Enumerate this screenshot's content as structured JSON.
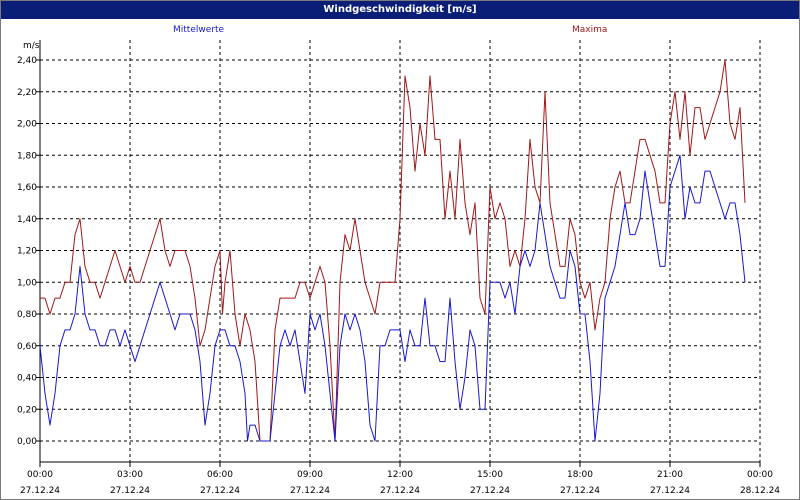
{
  "window": {
    "title": "Windgeschwindigkeit [m/s]"
  },
  "colors": {
    "title_bar": "#0a1e78",
    "mittelwerte": "#1818d0",
    "maxima": "#a01818"
  },
  "chart_data": {
    "type": "line",
    "title": "Windgeschwindigkeit [m/s]",
    "ylabel": "m/s",
    "ylim": [
      0.0,
      2.4
    ],
    "y_ticks": [
      "0,00",
      "0,20",
      "0,40",
      "0,60",
      "0,80",
      "1,00",
      "1,20",
      "1,40",
      "1,60",
      "1,80",
      "2,00",
      "2,20",
      "2,40"
    ],
    "x_ticks": [
      {
        "time": "00:00",
        "date": "27.12.24"
      },
      {
        "time": "03:00",
        "date": "27.12.24"
      },
      {
        "time": "06:00",
        "date": "27.12.24"
      },
      {
        "time": "09:00",
        "date": "27.12.24"
      },
      {
        "time": "12:00",
        "date": "27.12.24"
      },
      {
        "time": "15:00",
        "date": "27.12.24"
      },
      {
        "time": "18:00",
        "date": "27.12.24"
      },
      {
        "time": "21:00",
        "date": "27.12.24"
      },
      {
        "time": "00:00",
        "date": "28.12.24"
      }
    ],
    "xlim_hours": [
      0,
      24
    ],
    "grid": true,
    "series": [
      {
        "name": "Mittelwerte",
        "color": "#1818d0",
        "points": [
          [
            0.0,
            0.6
          ],
          [
            0.1667,
            0.3
          ],
          [
            0.333,
            0.1
          ],
          [
            0.5,
            0.3
          ],
          [
            0.667,
            0.6
          ],
          [
            0.833,
            0.7
          ],
          [
            1.0,
            0.7
          ],
          [
            1.167,
            0.8
          ],
          [
            1.333,
            1.1
          ],
          [
            1.5,
            0.8
          ],
          [
            1.667,
            0.7
          ],
          [
            1.833,
            0.7
          ],
          [
            2.0,
            0.6
          ],
          [
            2.167,
            0.6
          ],
          [
            2.333,
            0.7
          ],
          [
            2.5,
            0.7
          ],
          [
            2.667,
            0.6
          ],
          [
            2.833,
            0.7
          ],
          [
            3.0,
            0.6
          ],
          [
            3.167,
            0.5
          ],
          [
            3.333,
            0.6
          ],
          [
            3.5,
            0.7
          ],
          [
            3.667,
            0.8
          ],
          [
            3.833,
            0.9
          ],
          [
            4.0,
            1.0
          ],
          [
            4.167,
            0.9
          ],
          [
            4.333,
            0.8
          ],
          [
            4.5,
            0.7
          ],
          [
            4.667,
            0.8
          ],
          [
            4.833,
            0.8
          ],
          [
            5.0,
            0.8
          ],
          [
            5.167,
            0.7
          ],
          [
            5.333,
            0.5
          ],
          [
            5.5,
            0.1
          ],
          [
            5.667,
            0.3
          ],
          [
            5.833,
            0.6
          ],
          [
            6.0,
            0.7
          ],
          [
            6.167,
            0.7
          ],
          [
            6.333,
            0.6
          ],
          [
            6.5,
            0.6
          ],
          [
            6.667,
            0.5
          ],
          [
            6.833,
            0.3
          ],
          [
            6.917,
            0.0
          ],
          [
            7.0,
            0.1
          ],
          [
            7.167,
            0.1
          ],
          [
            7.333,
            0.0
          ],
          [
            7.5,
            0.0
          ],
          [
            7.667,
            0.0
          ],
          [
            7.833,
            0.3
          ],
          [
            8.0,
            0.6
          ],
          [
            8.167,
            0.7
          ],
          [
            8.333,
            0.6
          ],
          [
            8.5,
            0.7
          ],
          [
            8.667,
            0.5
          ],
          [
            8.833,
            0.3
          ],
          [
            9.0,
            0.8
          ],
          [
            9.167,
            0.7
          ],
          [
            9.333,
            0.8
          ],
          [
            9.5,
            0.6
          ],
          [
            9.667,
            0.3
          ],
          [
            9.833,
            0.0
          ],
          [
            10.0,
            0.6
          ],
          [
            10.167,
            0.8
          ],
          [
            10.333,
            0.7
          ],
          [
            10.5,
            0.8
          ],
          [
            10.667,
            0.7
          ],
          [
            10.833,
            0.5
          ],
          [
            11.0,
            0.1
          ],
          [
            11.167,
            0.0
          ],
          [
            11.333,
            0.6
          ],
          [
            11.5,
            0.6
          ],
          [
            11.667,
            0.7
          ],
          [
            11.833,
            0.7
          ],
          [
            12.0,
            0.7
          ],
          [
            12.167,
            0.5
          ],
          [
            12.333,
            0.7
          ],
          [
            12.5,
            0.6
          ],
          [
            12.667,
            0.6
          ],
          [
            12.833,
            0.9
          ],
          [
            13.0,
            0.6
          ],
          [
            13.167,
            0.6
          ],
          [
            13.333,
            0.5
          ],
          [
            13.5,
            0.5
          ],
          [
            13.667,
            0.9
          ],
          [
            13.833,
            0.5
          ],
          [
            14.0,
            0.2
          ],
          [
            14.167,
            0.4
          ],
          [
            14.333,
            0.7
          ],
          [
            14.5,
            0.6
          ],
          [
            14.667,
            0.2
          ],
          [
            14.833,
            0.2
          ],
          [
            15.0,
            1.0
          ],
          [
            15.167,
            1.0
          ],
          [
            15.333,
            1.0
          ],
          [
            15.5,
            0.9
          ],
          [
            15.667,
            1.0
          ],
          [
            15.833,
            0.8
          ],
          [
            16.0,
            1.1
          ],
          [
            16.167,
            1.2
          ],
          [
            16.333,
            1.1
          ],
          [
            16.5,
            1.2
          ],
          [
            16.667,
            1.5
          ],
          [
            16.833,
            1.3
          ],
          [
            17.0,
            1.1
          ],
          [
            17.167,
            1.0
          ],
          [
            17.333,
            0.9
          ],
          [
            17.5,
            0.9
          ],
          [
            17.667,
            1.2
          ],
          [
            17.833,
            1.1
          ],
          [
            18.0,
            0.8
          ],
          [
            18.167,
            0.8
          ],
          [
            18.333,
            0.5
          ],
          [
            18.5,
            0.0
          ],
          [
            18.667,
            0.3
          ],
          [
            18.833,
            0.9
          ],
          [
            19.0,
            1.0
          ],
          [
            19.167,
            1.1
          ],
          [
            19.333,
            1.3
          ],
          [
            19.5,
            1.5
          ],
          [
            19.667,
            1.3
          ],
          [
            19.833,
            1.3
          ],
          [
            20.0,
            1.4
          ],
          [
            20.167,
            1.7
          ],
          [
            20.333,
            1.5
          ],
          [
            20.5,
            1.3
          ],
          [
            20.667,
            1.1
          ],
          [
            20.833,
            1.1
          ],
          [
            21.0,
            1.6
          ],
          [
            21.167,
            1.7
          ],
          [
            21.333,
            1.8
          ],
          [
            21.5,
            1.4
          ],
          [
            21.667,
            1.6
          ],
          [
            21.833,
            1.5
          ],
          [
            22.0,
            1.5
          ],
          [
            22.167,
            1.7
          ],
          [
            22.333,
            1.7
          ],
          [
            22.5,
            1.6
          ],
          [
            22.667,
            1.5
          ],
          [
            22.833,
            1.4
          ],
          [
            23.0,
            1.5
          ],
          [
            23.167,
            1.5
          ],
          [
            23.333,
            1.3
          ],
          [
            23.5,
            1.0
          ]
        ]
      },
      {
        "name": "Maxima",
        "color": "#a01818",
        "points": [
          [
            0.0,
            0.9
          ],
          [
            0.1667,
            0.9
          ],
          [
            0.333,
            0.8
          ],
          [
            0.5,
            0.9
          ],
          [
            0.667,
            0.9
          ],
          [
            0.833,
            1.0
          ],
          [
            1.0,
            1.0
          ],
          [
            1.167,
            1.3
          ],
          [
            1.333,
            1.4
          ],
          [
            1.5,
            1.1
          ],
          [
            1.667,
            1.0
          ],
          [
            1.833,
            1.0
          ],
          [
            2.0,
            0.9
          ],
          [
            2.167,
            1.0
          ],
          [
            2.333,
            1.1
          ],
          [
            2.5,
            1.2
          ],
          [
            2.667,
            1.1
          ],
          [
            2.833,
            1.0
          ],
          [
            3.0,
            1.1
          ],
          [
            3.167,
            1.0
          ],
          [
            3.333,
            1.0
          ],
          [
            3.5,
            1.1
          ],
          [
            3.667,
            1.2
          ],
          [
            3.833,
            1.3
          ],
          [
            4.0,
            1.4
          ],
          [
            4.167,
            1.2
          ],
          [
            4.333,
            1.1
          ],
          [
            4.5,
            1.2
          ],
          [
            4.667,
            1.2
          ],
          [
            4.833,
            1.2
          ],
          [
            5.0,
            1.1
          ],
          [
            5.167,
            0.9
          ],
          [
            5.333,
            0.6
          ],
          [
            5.5,
            0.7
          ],
          [
            5.667,
            0.9
          ],
          [
            5.833,
            1.1
          ],
          [
            6.0,
            1.2
          ],
          [
            6.083,
            0.8
          ],
          [
            6.167,
            1.0
          ],
          [
            6.333,
            1.2
          ],
          [
            6.5,
            0.8
          ],
          [
            6.667,
            0.6
          ],
          [
            6.833,
            0.8
          ],
          [
            7.0,
            0.7
          ],
          [
            7.167,
            0.5
          ],
          [
            7.333,
            0.0
          ],
          [
            7.5,
            0.0
          ],
          [
            7.667,
            0.0
          ],
          [
            7.833,
            0.7
          ],
          [
            8.0,
            0.9
          ],
          [
            8.167,
            0.9
          ],
          [
            8.333,
            0.9
          ],
          [
            8.5,
            0.9
          ],
          [
            8.667,
            1.0
          ],
          [
            8.833,
            1.0
          ],
          [
            9.0,
            0.9
          ],
          [
            9.167,
            1.0
          ],
          [
            9.333,
            1.1
          ],
          [
            9.5,
            1.0
          ],
          [
            9.667,
            0.6
          ],
          [
            9.833,
            0.0
          ],
          [
            10.0,
            1.0
          ],
          [
            10.167,
            1.3
          ],
          [
            10.333,
            1.2
          ],
          [
            10.5,
            1.4
          ],
          [
            10.667,
            1.2
          ],
          [
            10.833,
            1.0
          ],
          [
            11.0,
            0.9
          ],
          [
            11.167,
            0.8
          ],
          [
            11.333,
            1.0
          ],
          [
            11.5,
            1.0
          ],
          [
            11.667,
            1.0
          ],
          [
            11.833,
            1.0
          ],
          [
            12.0,
            1.4
          ],
          [
            12.167,
            2.3
          ],
          [
            12.333,
            2.1
          ],
          [
            12.5,
            1.7
          ],
          [
            12.667,
            2.0
          ],
          [
            12.833,
            1.8
          ],
          [
            13.0,
            2.3
          ],
          [
            13.167,
            1.9
          ],
          [
            13.333,
            1.9
          ],
          [
            13.5,
            1.4
          ],
          [
            13.667,
            1.7
          ],
          [
            13.833,
            1.4
          ],
          [
            14.0,
            1.9
          ],
          [
            14.167,
            1.5
          ],
          [
            14.333,
            1.3
          ],
          [
            14.5,
            1.5
          ],
          [
            14.667,
            0.9
          ],
          [
            14.833,
            0.8
          ],
          [
            15.0,
            1.6
          ],
          [
            15.167,
            1.4
          ],
          [
            15.333,
            1.5
          ],
          [
            15.5,
            1.4
          ],
          [
            15.667,
            1.1
          ],
          [
            15.833,
            1.2
          ],
          [
            16.0,
            1.1
          ],
          [
            16.167,
            1.4
          ],
          [
            16.333,
            1.9
          ],
          [
            16.5,
            1.6
          ],
          [
            16.667,
            1.5
          ],
          [
            16.833,
            2.2
          ],
          [
            17.0,
            1.5
          ],
          [
            17.167,
            1.3
          ],
          [
            17.333,
            1.1
          ],
          [
            17.5,
            1.1
          ],
          [
            17.667,
            1.4
          ],
          [
            17.833,
            1.3
          ],
          [
            18.0,
            1.0
          ],
          [
            18.167,
            0.9
          ],
          [
            18.333,
            1.0
          ],
          [
            18.5,
            0.7
          ],
          [
            18.667,
            0.9
          ],
          [
            18.833,
            1.0
          ],
          [
            19.0,
            1.4
          ],
          [
            19.167,
            1.6
          ],
          [
            19.333,
            1.7
          ],
          [
            19.5,
            1.5
          ],
          [
            19.667,
            1.5
          ],
          [
            19.833,
            1.7
          ],
          [
            20.0,
            1.9
          ],
          [
            20.167,
            1.9
          ],
          [
            20.333,
            1.8
          ],
          [
            20.5,
            1.7
          ],
          [
            20.667,
            1.5
          ],
          [
            20.833,
            1.5
          ],
          [
            21.0,
            2.0
          ],
          [
            21.167,
            2.2
          ],
          [
            21.333,
            1.9
          ],
          [
            21.5,
            2.2
          ],
          [
            21.667,
            1.8
          ],
          [
            21.833,
            2.1
          ],
          [
            22.0,
            2.1
          ],
          [
            22.167,
            1.9
          ],
          [
            22.333,
            2.0
          ],
          [
            22.5,
            2.1
          ],
          [
            22.667,
            2.2
          ],
          [
            22.833,
            2.4
          ],
          [
            23.0,
            2.0
          ],
          [
            23.167,
            1.9
          ],
          [
            23.333,
            2.1
          ],
          [
            23.5,
            1.5
          ]
        ]
      }
    ]
  }
}
